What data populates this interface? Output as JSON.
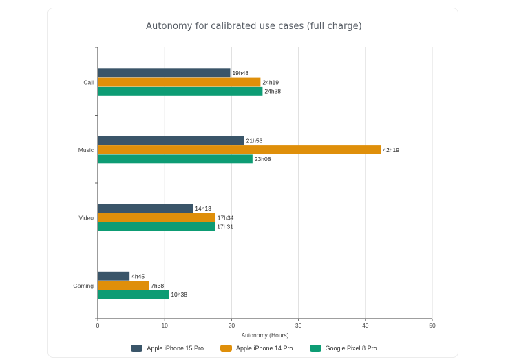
{
  "chart_data": {
    "type": "bar",
    "orientation": "horizontal",
    "title": "Autonomy for calibrated use cases (full charge)",
    "xlabel": "Autonomy (Hours)",
    "ylabel": "",
    "xlim": [
      0,
      50
    ],
    "x_ticks": [
      0,
      10,
      20,
      30,
      40,
      50
    ],
    "grid": true,
    "legend_position": "bottom-center",
    "categories": [
      "Call",
      "Music",
      "Video",
      "Gaming"
    ],
    "series": [
      {
        "name": "Apple iPhone 15 Pro",
        "color": "#3a5569",
        "values": [
          19.8,
          21.88,
          14.22,
          4.75
        ],
        "labels": [
          "19h48",
          "21h53",
          "14h13",
          "4h45"
        ]
      },
      {
        "name": "Apple iPhone 14 Pro",
        "color": "#df8f0a",
        "values": [
          24.32,
          42.32,
          17.57,
          7.63
        ],
        "labels": [
          "24h19",
          "42h19",
          "17h34",
          "7h38"
        ]
      },
      {
        "name": "Google Pixel 8 Pro",
        "color": "#0d9c74",
        "values": [
          24.63,
          23.13,
          17.52,
          10.63
        ],
        "labels": [
          "24h38",
          "23h08",
          "17h31",
          "10h38"
        ]
      }
    ]
  }
}
